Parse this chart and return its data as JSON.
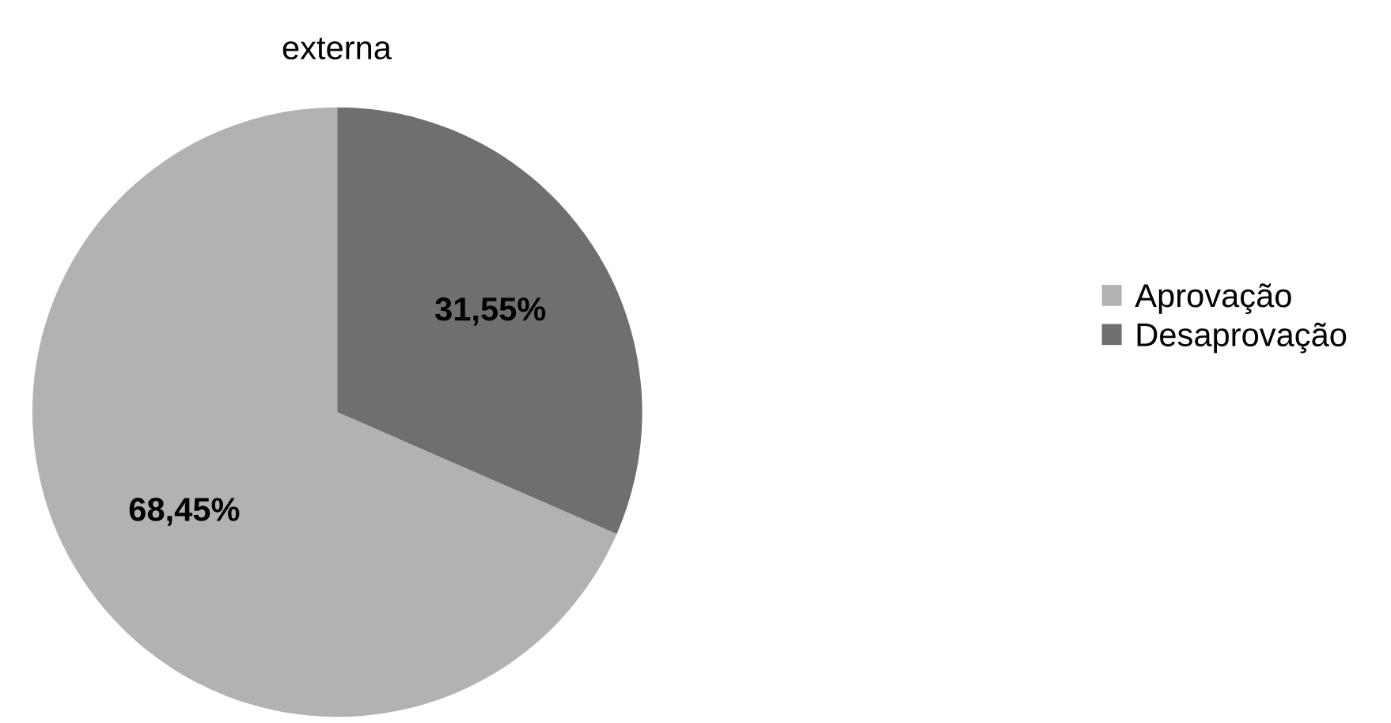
{
  "chart_data": {
    "type": "pie",
    "title": "externa",
    "categories": [
      "Aprovação",
      "Desaprovação"
    ],
    "values": [
      68.45,
      31.55
    ],
    "value_labels": [
      "68,45%",
      "31,55%"
    ],
    "colors": [
      "#b2b2b2",
      "#6f6f6f"
    ],
    "legend": "right"
  }
}
